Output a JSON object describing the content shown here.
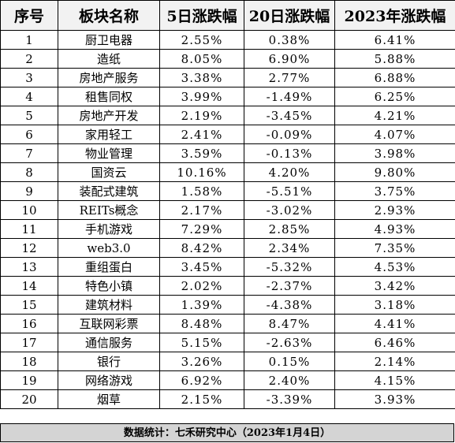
{
  "table": {
    "headers": [
      "序号",
      "板块名称",
      "5日涨跌幅",
      "20日涨跌幅",
      "2023年涨跌幅"
    ],
    "rows": [
      [
        "1",
        "厨卫电器",
        "2.55%",
        "0.38%",
        "6.41%"
      ],
      [
        "2",
        "造纸",
        "8.05%",
        "6.90%",
        "5.88%"
      ],
      [
        "3",
        "房地产服务",
        "3.38%",
        "2.77%",
        "6.88%"
      ],
      [
        "4",
        "租售同权",
        "3.99%",
        "-1.49%",
        "6.25%"
      ],
      [
        "5",
        "房地产开发",
        "2.19%",
        "-3.45%",
        "4.21%"
      ],
      [
        "6",
        "家用轻工",
        "2.41%",
        "-0.09%",
        "4.07%"
      ],
      [
        "7",
        "物业管理",
        "3.59%",
        "-0.13%",
        "3.98%"
      ],
      [
        "8",
        "国资云",
        "10.16%",
        "4.20%",
        "9.80%"
      ],
      [
        "9",
        "装配式建筑",
        "1.58%",
        "-5.51%",
        "3.75%"
      ],
      [
        "10",
        "REITs概念",
        "2.17%",
        "-3.02%",
        "2.93%"
      ],
      [
        "11",
        "手机游戏",
        "7.29%",
        "2.85%",
        "4.93%"
      ],
      [
        "12",
        "web3.0",
        "8.42%",
        "2.34%",
        "7.35%"
      ],
      [
        "13",
        "重组蛋白",
        "3.45%",
        "-5.32%",
        "4.53%"
      ],
      [
        "14",
        "特色小镇",
        "2.02%",
        "-2.37%",
        "3.42%"
      ],
      [
        "15",
        "建筑材料",
        "1.39%",
        "-4.38%",
        "3.18%"
      ],
      [
        "16",
        "互联网彩票",
        "8.48%",
        "8.47%",
        "4.41%"
      ],
      [
        "17",
        "通信服务",
        "5.15%",
        "-2.63%",
        "6.46%"
      ],
      [
        "18",
        "银行",
        "3.26%",
        "0.15%",
        "2.14%"
      ],
      [
        "19",
        "网络游戏",
        "6.92%",
        "2.40%",
        "4.15%"
      ],
      [
        "20",
        "烟草",
        "2.15%",
        "-3.39%",
        "3.93%"
      ]
    ]
  },
  "footer": {
    "text": "数据统计：七禾研究中心（2023年1月4日）"
  },
  "colors": {
    "header_bg": "#f2f2f2",
    "footer_bg": "#d4d4d4",
    "border": "#000000"
  }
}
